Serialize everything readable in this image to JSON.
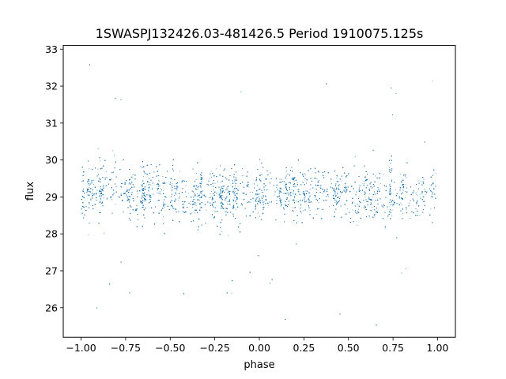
{
  "chart_data": {
    "type": "scatter",
    "title": "1SWASPJ132426.03-481426.5 Period 1910075.125s",
    "xlabel": "phase",
    "ylabel": "flux",
    "xlim": [
      -1.1,
      1.1
    ],
    "ylim": [
      25.2,
      33.1
    ],
    "xticks": [
      -1.0,
      -0.75,
      -0.5,
      -0.25,
      0.0,
      0.25,
      0.5,
      0.75,
      1.0
    ],
    "xtick_labels": [
      "−1.00",
      "−0.75",
      "−0.50",
      "−0.25",
      "0.00",
      "0.25",
      "0.50",
      "0.75",
      "1.00"
    ],
    "yticks": [
      26,
      27,
      28,
      29,
      30,
      31,
      32,
      33
    ],
    "ytick_labels": [
      "26",
      "27",
      "28",
      "29",
      "30",
      "31",
      "32",
      "33"
    ],
    "grid": false,
    "point_color": "#1f77b4",
    "series": [
      {
        "x_range": [
          -1.0,
          1.0
        ],
        "core_range": [
          27.8,
          30.2
        ],
        "y_median": 29.1,
        "outlier_range": [
          25.5,
          32.7
        ],
        "point_count_estimate": 40000
      }
    ]
  }
}
